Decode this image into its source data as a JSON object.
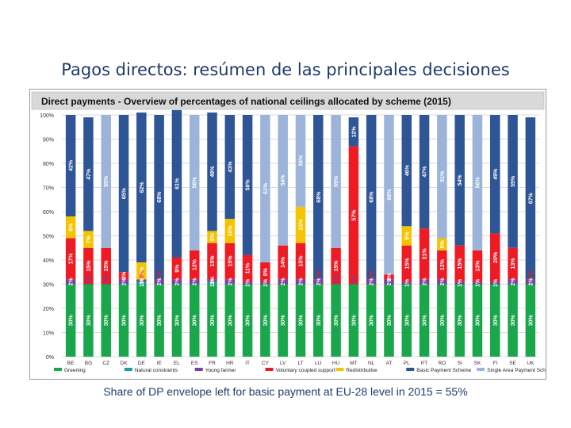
{
  "slide": {
    "title": "Pagos directos: resúmen de las principales decisiones",
    "caption": "Share of DP envelope left for basic payment at EU-28 level in 2015 = 55%"
  },
  "chart_data": {
    "type": "bar",
    "stacked": true,
    "title": "Direct payments - Overview of percentages of national ceilings allocated by scheme (2015)",
    "xlabel": "",
    "ylabel": "",
    "ylim": [
      0,
      100
    ],
    "yticks": [
      "0%",
      "10%",
      "20%",
      "30%",
      "40%",
      "50%",
      "60%",
      "70%",
      "80%",
      "90%",
      "100%"
    ],
    "grid": true,
    "legend_position": "bottom",
    "categories": [
      "BE",
      "BG",
      "CZ",
      "DK",
      "DE",
      "IE",
      "EL",
      "ES",
      "FR",
      "HR",
      "IT",
      "CY",
      "LV",
      "LT",
      "LU",
      "HU",
      "MT",
      "NL",
      "AT",
      "PL",
      "PT",
      "RO",
      "SI",
      "SK",
      "FI",
      "SE",
      "UK"
    ],
    "series": [
      {
        "name": "Greening",
        "color": "#1aa64a",
        "values": [
          30,
          30,
          30,
          30,
          30,
          30,
          30,
          30,
          30,
          30,
          30,
          30,
          30,
          30,
          30,
          30,
          30,
          30,
          30,
          30,
          30,
          30,
          30,
          30,
          30,
          30,
          30
        ],
        "labels": [
          "30%",
          "30%",
          "30%",
          "30%",
          "30%",
          "30%",
          "30%",
          "30%",
          "30%",
          "30%",
          "30%",
          "30%",
          "30%",
          "30%",
          "30%",
          "30%",
          "30%",
          "30%",
          "30%",
          "30%",
          "30%",
          "30%",
          "30%",
          "30%",
          "30%",
          "30%",
          "30%"
        ]
      },
      {
        "name": "Natural constraints",
        "color": "#1f9e9e",
        "values": [
          0,
          0,
          0,
          0,
          1,
          0,
          0,
          0,
          1,
          0,
          0,
          0,
          0,
          0,
          0,
          0,
          0,
          0,
          0,
          0,
          0,
          0,
          0,
          0,
          0,
          0,
          0
        ],
        "labels": [
          "",
          "",
          "",
          "",
          "1%",
          "",
          "",
          "",
          "1%",
          "",
          "",
          "",
          "",
          "",
          "",
          "",
          "",
          "",
          "",
          "",
          "",
          "",
          "",
          "",
          "",
          "",
          ""
        ]
      },
      {
        "name": "Young farmer",
        "color": "#7b3fa0",
        "values": [
          2,
          0,
          0,
          2,
          1,
          2,
          2,
          2,
          1,
          2,
          1,
          1,
          2,
          2,
          2,
          0,
          0,
          2,
          2,
          1,
          2,
          2,
          1,
          1,
          1,
          2,
          2
        ],
        "labels": [
          "2%",
          "0%",
          "0%",
          "2%",
          "1%",
          "2%",
          "2%",
          "2%",
          "1%",
          "2%",
          "1%",
          "1%",
          "2%",
          "2%",
          "2%",
          "0%",
          "0%",
          "2%",
          "2%",
          "1%",
          "2%",
          "2%",
          "1%",
          "1%",
          "1%",
          "2%",
          "2%"
        ]
      },
      {
        "name": "Voluntary coupled support",
        "color": "#ee1b24",
        "values": [
          17,
          15,
          15,
          3,
          0,
          0,
          9,
          12,
          15,
          15,
          11,
          8,
          14,
          15,
          0,
          15,
          57,
          0,
          2,
          15,
          21,
          12,
          15,
          13,
          20,
          13,
          0
        ],
        "labels": [
          "17%",
          "15%",
          "15%",
          "3%",
          "0%",
          "0%",
          "9%",
          "12%",
          "15%",
          "15%",
          "11%",
          "8%",
          "14%",
          "15%",
          "0%",
          "15%",
          "57%",
          "0%",
          "2%",
          "15%",
          "21%",
          "12%",
          "15%",
          "13%",
          "20%",
          "13%",
          "0%"
        ]
      },
      {
        "name": "Redistributive",
        "color": "#f5c400",
        "values": [
          9,
          7,
          0,
          0,
          7,
          0,
          0,
          0,
          5,
          10,
          0,
          0,
          0,
          15,
          0,
          0,
          0,
          0,
          0,
          8,
          0,
          5,
          0,
          0,
          0,
          0,
          0
        ],
        "labels": [
          "9%",
          "7%",
          "",
          "",
          "7%",
          "",
          "",
          "",
          "5%",
          "10%",
          "",
          "",
          "",
          "15%",
          "",
          "",
          "",
          "",
          "",
          "8%",
          "",
          "5%",
          "",
          "",
          "",
          "",
          ""
        ]
      },
      {
        "name": "Basic Payment Scheme",
        "color": "#2e5595",
        "values": [
          42,
          47,
          0,
          65,
          62,
          68,
          61,
          0,
          49,
          43,
          58,
          0,
          0,
          0,
          68,
          0,
          12,
          68,
          0,
          46,
          47,
          0,
          54,
          0,
          49,
          55,
          67
        ],
        "labels": [
          "42%",
          "47%",
          "",
          "65%",
          "62%",
          "68%",
          "61%",
          "",
          "49%",
          "43%",
          "58%",
          "",
          "",
          "",
          "68%",
          "",
          "12%",
          "68%",
          "",
          "46%",
          "47%",
          "",
          "54%",
          "",
          "49%",
          "55%",
          "67%"
        ]
      },
      {
        "name": "Single Area Payment Scheme",
        "color": "#9cb4da",
        "values": [
          0,
          0,
          55,
          0,
          0,
          0,
          0,
          56,
          0,
          0,
          0,
          61,
          54,
          38,
          0,
          55,
          0,
          0,
          66,
          0,
          0,
          51,
          0,
          56,
          0,
          0,
          0
        ],
        "labels": [
          "",
          "",
          "55%",
          "",
          "",
          "",
          "",
          "56%",
          "",
          "",
          "",
          "61%",
          "54%",
          "38%",
          "",
          "55%",
          "",
          "",
          "66%",
          "",
          "",
          "51%",
          "",
          "56%",
          "",
          "",
          ""
        ]
      }
    ]
  }
}
